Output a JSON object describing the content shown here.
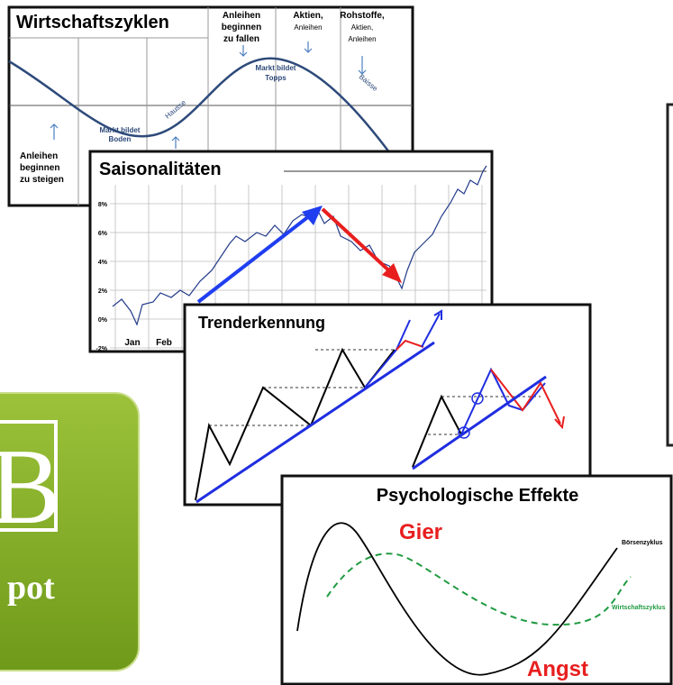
{
  "panels": {
    "zyklen": {
      "title": "Wirtschaftszyklen",
      "top_labels": [
        [
          "Anleihen",
          "beginnen",
          "zu fallen"
        ],
        [
          "Aktien,",
          "Anleihen"
        ],
        [
          "Rohstoffe,",
          "Aktien,",
          "Anleihen"
        ]
      ],
      "peak": [
        "Markt bildet",
        "Topps"
      ],
      "baisse": "Baisse",
      "hausse": "Hausse",
      "trough": [
        "Markt bildet",
        "Boden"
      ],
      "bottom_left": [
        "Anleihen",
        "beginnen",
        "zu steigen"
      ]
    },
    "saison": {
      "title": "Saisonalitäten",
      "y_labels": [
        "8%",
        "6%",
        "4%",
        "2%",
        "0%",
        "-2%"
      ],
      "x_labels": [
        "Jan",
        "Feb"
      ]
    },
    "trend": {
      "title": "Trenderkennung"
    },
    "psycho": {
      "title": "Psychologische Effekte",
      "greed": "Gier",
      "fear": "Angst",
      "market_cycle": "Börsenzyklus",
      "economic_cycle": "Wirtschaftszyklus"
    },
    "logo": {
      "letter": "B",
      "word": "pot"
    }
  }
}
